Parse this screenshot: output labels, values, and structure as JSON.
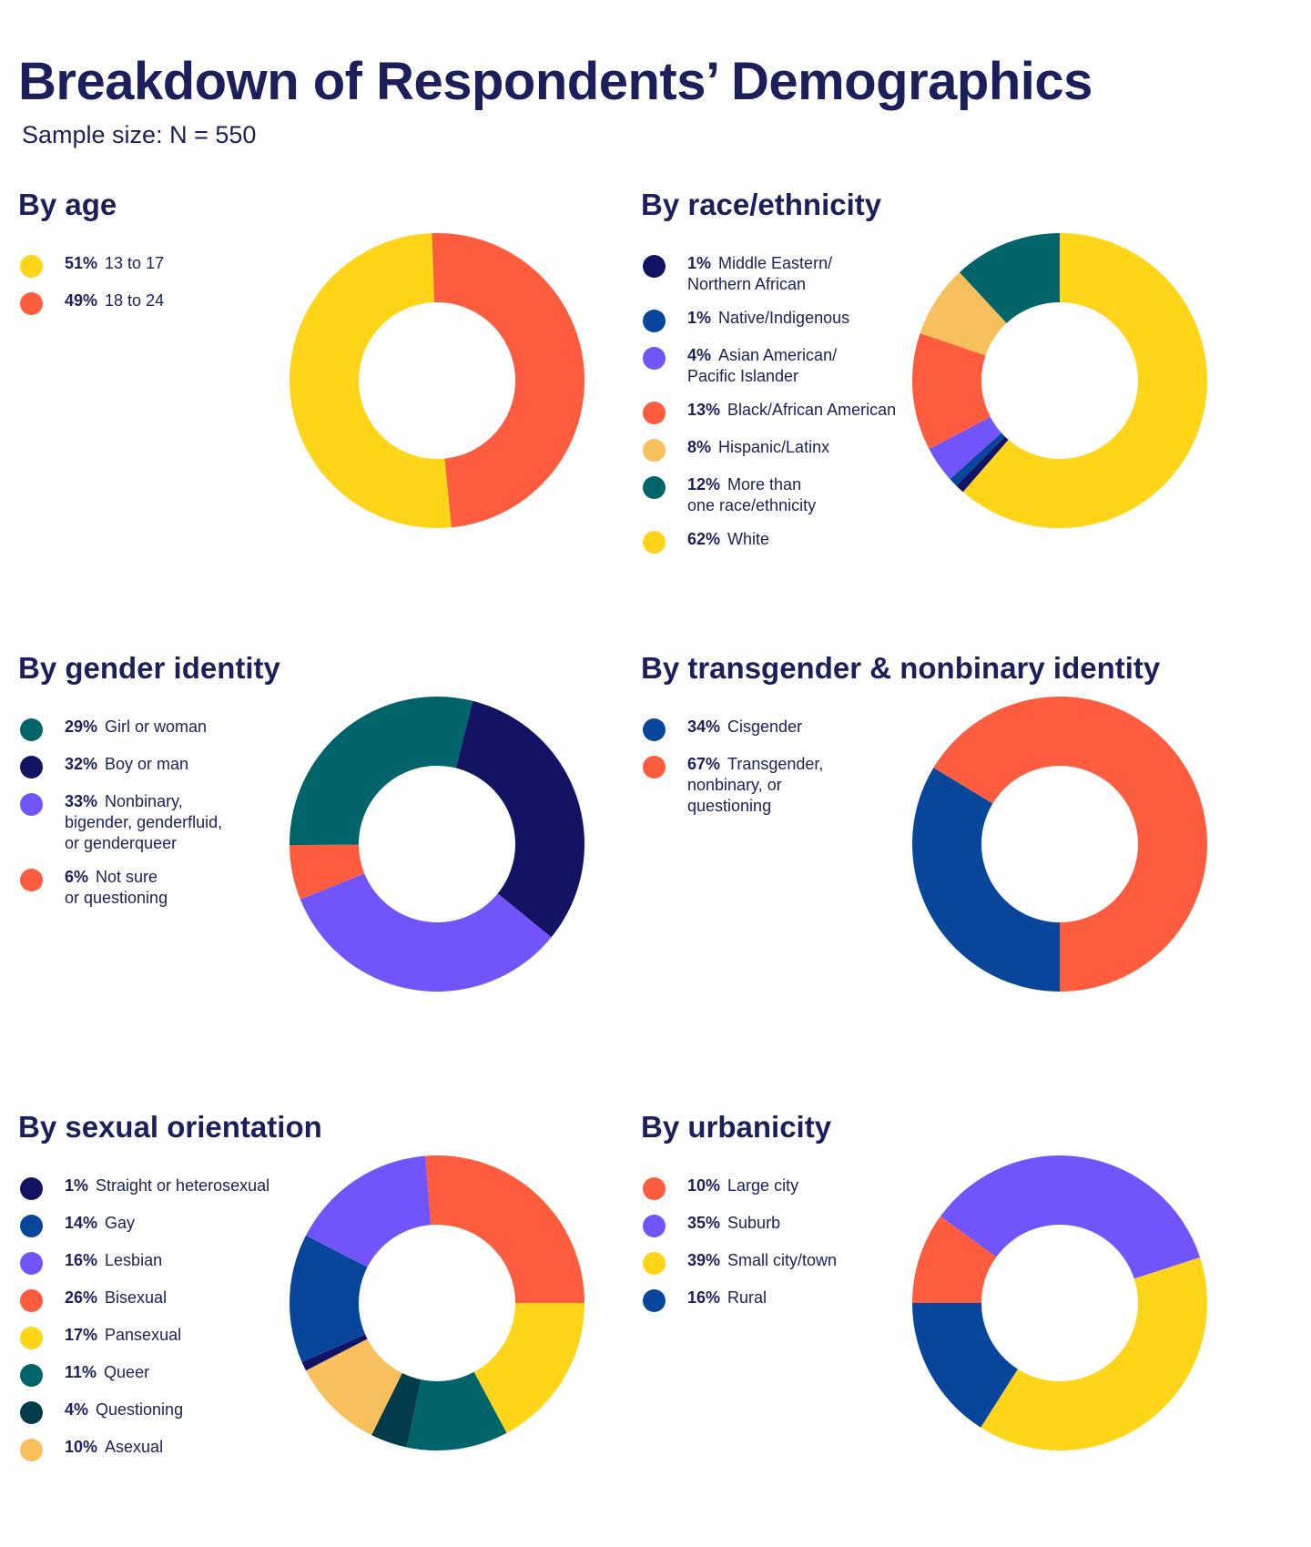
{
  "title": "Breakdown of Respondents’ Demographics",
  "subtitle": "Sample size: N = 550",
  "colors": {
    "navy": "#131363",
    "blue": "#07469a",
    "purple": "#7155fb",
    "coral": "#fe5c3e",
    "peach": "#f7c05c",
    "teal": "#00646a",
    "yellow": "#fed519",
    "darkteal": "#023c4a",
    "text": "#1b1f5c"
  },
  "chart_data": [
    {
      "id": "age",
      "type": "pie",
      "title": "By age",
      "start_angle": -2,
      "series": [
        {
          "pct": "51%",
          "label": "13 to 17",
          "value": 51,
          "color": "#fed519"
        },
        {
          "pct": "49%",
          "label": "18 to 24",
          "value": 49,
          "color": "#fe5c3e"
        }
      ],
      "draw_order": [
        1,
        0
      ]
    },
    {
      "id": "race",
      "type": "pie",
      "title": "By race/ethnicity",
      "start_angle": 0,
      "series": [
        {
          "pct": "1%",
          "label": "Middle Eastern/\nNorthern African",
          "value": 1,
          "color": "#131363"
        },
        {
          "pct": "1%",
          "label": "Native/Indigenous",
          "value": 1,
          "color": "#07469a"
        },
        {
          "pct": "4%",
          "label": "Asian American/\nPacific Islander",
          "value": 4,
          "color": "#7155fb"
        },
        {
          "pct": "13%",
          "label": "Black/African American",
          "value": 13,
          "color": "#fe5c3e"
        },
        {
          "pct": "8%",
          "label": "Hispanic/Latinx",
          "value": 8,
          "color": "#f7c05c"
        },
        {
          "pct": "12%",
          "label": "More than\none race/ethnicity",
          "value": 12,
          "color": "#00646a"
        },
        {
          "pct": "62%",
          "label": "White",
          "value": 62,
          "color": "#fed519"
        }
      ],
      "draw_order": [
        6,
        0,
        1,
        2,
        3,
        4,
        5
      ]
    },
    {
      "id": "gender",
      "type": "pie",
      "title": "By gender identity",
      "start_angle": 14,
      "series": [
        {
          "pct": "29%",
          "label": "Girl or woman",
          "value": 29,
          "color": "#00646a"
        },
        {
          "pct": "32%",
          "label": "Boy or man",
          "value": 32,
          "color": "#131363"
        },
        {
          "pct": "33%",
          "label": "Nonbinary,\nbigender, genderfluid,\nor genderqueer",
          "value": 33,
          "color": "#7155fb"
        },
        {
          "pct": "6%",
          "label": "Not sure\nor questioning",
          "value": 6,
          "color": "#fe5c3e"
        }
      ],
      "draw_order": [
        1,
        2,
        3,
        0
      ]
    },
    {
      "id": "trans",
      "type": "pie",
      "title": "By transgender & nonbinary identity",
      "start_angle": 180,
      "series": [
        {
          "pct": "34%",
          "label": "Cisgender",
          "value": 34,
          "color": "#07469a"
        },
        {
          "pct": "67%",
          "label": "Transgender,\nnonbinary, or\nquestioning",
          "value": 67,
          "color": "#fe5c3e"
        }
      ],
      "draw_order": [
        0,
        1
      ]
    },
    {
      "id": "orientation",
      "type": "pie",
      "title": "By sexual orientation",
      "start_angle": 90,
      "series": [
        {
          "pct": "1%",
          "label": "Straight or heterosexual",
          "value": 1,
          "color": "#131363"
        },
        {
          "pct": "14%",
          "label": "Gay",
          "value": 14,
          "color": "#07469a"
        },
        {
          "pct": "16%",
          "label": "Lesbian",
          "value": 16,
          "color": "#7155fb"
        },
        {
          "pct": "26%",
          "label": "Bisexual",
          "value": 26,
          "color": "#fe5c3e"
        },
        {
          "pct": "17%",
          "label": "Pansexual",
          "value": 17,
          "color": "#fed519"
        },
        {
          "pct": "11%",
          "label": "Queer",
          "value": 11,
          "color": "#00646a"
        },
        {
          "pct": "4%",
          "label": "Questioning",
          "value": 4,
          "color": "#023c4a"
        },
        {
          "pct": "10%",
          "label": "Asexual",
          "value": 10,
          "color": "#f7c05c"
        }
      ],
      "draw_order": [
        4,
        5,
        6,
        7,
        0,
        1,
        2,
        3
      ]
    },
    {
      "id": "urban",
      "type": "pie",
      "title": "By urbanicity",
      "start_angle": -90,
      "series": [
        {
          "pct": "10%",
          "label": "Large city",
          "value": 10,
          "color": "#fe5c3e"
        },
        {
          "pct": "35%",
          "label": "Suburb",
          "value": 35,
          "color": "#7155fb"
        },
        {
          "pct": "39%",
          "label": "Small city/town",
          "value": 39,
          "color": "#fed519"
        },
        {
          "pct": "16%",
          "label": "Rural",
          "value": 16,
          "color": "#07469a"
        }
      ],
      "draw_order": [
        0,
        1,
        2,
        3
      ]
    }
  ]
}
